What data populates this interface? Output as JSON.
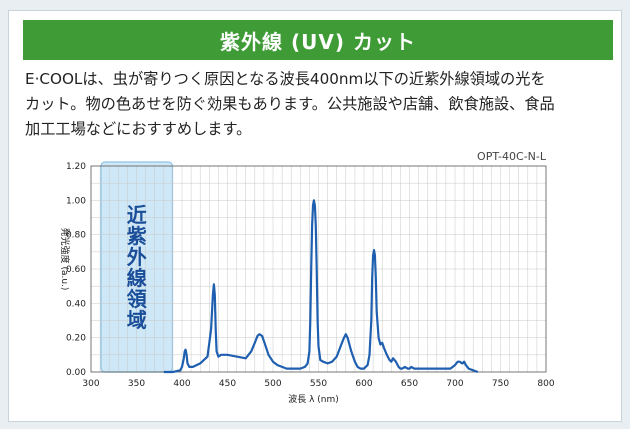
{
  "header": {
    "title": "紫外線 (UV) カット"
  },
  "description": {
    "lines": [
      "E·COOLは、虫が寄りつく原因となる波長400nm以下の近紫外線領域の光を",
      "カット。物の色あせを防ぐ効果もあります。公共施設や店舗、飲食施設、食品",
      "加工工場などにおすすめします。"
    ]
  },
  "colors": {
    "accent": "#3f9b35",
    "line": "#1f5fb0",
    "band_fill": "#cfe8f7",
    "band_border": "#8fc3e6"
  },
  "chart_data": {
    "type": "line",
    "model_label": "OPT-40C-N-L",
    "xlabel": "波長 λ (nm)",
    "ylabel": "発光強度 (a.u.)",
    "xlim": [
      300,
      800
    ],
    "ylim": [
      0,
      1.2
    ],
    "x_ticks": [
      "300",
      "350",
      "400",
      "450",
      "500",
      "550",
      "600",
      "650",
      "700",
      "750",
      "800"
    ],
    "y_ticks": [
      "0.00",
      "0.20",
      "0.40",
      "0.60",
      "0.80",
      "1.00",
      "1.20"
    ],
    "grid": true,
    "band": {
      "label": "近紫外線領域",
      "x_range": [
        300,
        395
      ]
    },
    "series": [
      {
        "x": [
          380,
          390,
          398,
          400,
          402,
          403,
          404,
          405,
          406,
          408,
          412,
          420,
          428,
          432,
          434,
          435,
          436,
          437,
          438,
          440,
          443,
          450,
          460,
          470,
          476,
          480,
          483,
          485,
          488,
          490,
          492,
          495,
          500,
          505,
          510,
          515,
          520,
          525,
          530,
          535,
          538,
          540,
          541,
          542,
          543,
          544,
          545,
          546,
          547,
          548,
          549,
          550,
          552,
          555,
          560,
          565,
          570,
          575,
          578,
          580,
          582,
          584,
          586,
          588,
          590,
          593,
          596,
          600,
          604,
          606,
          608,
          609,
          610,
          611,
          612,
          613,
          614,
          616,
          618,
          620,
          622,
          625,
          628,
          630,
          632,
          635,
          638,
          640,
          642,
          645,
          648,
          650,
          652,
          655,
          660,
          665,
          670,
          675,
          680,
          685,
          690,
          695,
          700,
          703,
          705,
          708,
          710,
          712,
          715,
          720,
          725
        ],
        "y": [
          0.0,
          0.0,
          0.01,
          0.03,
          0.08,
          0.12,
          0.13,
          0.1,
          0.05,
          0.03,
          0.03,
          0.05,
          0.09,
          0.25,
          0.45,
          0.51,
          0.45,
          0.25,
          0.12,
          0.09,
          0.1,
          0.1,
          0.09,
          0.08,
          0.12,
          0.17,
          0.21,
          0.22,
          0.21,
          0.18,
          0.15,
          0.1,
          0.06,
          0.04,
          0.03,
          0.02,
          0.02,
          0.02,
          0.02,
          0.03,
          0.05,
          0.12,
          0.3,
          0.6,
          0.85,
          0.97,
          1.0,
          0.97,
          0.85,
          0.6,
          0.3,
          0.15,
          0.07,
          0.06,
          0.05,
          0.06,
          0.09,
          0.16,
          0.2,
          0.22,
          0.2,
          0.16,
          0.12,
          0.09,
          0.06,
          0.03,
          0.02,
          0.02,
          0.04,
          0.1,
          0.3,
          0.55,
          0.68,
          0.71,
          0.68,
          0.55,
          0.35,
          0.2,
          0.16,
          0.17,
          0.14,
          0.1,
          0.07,
          0.06,
          0.08,
          0.06,
          0.03,
          0.02,
          0.02,
          0.03,
          0.02,
          0.02,
          0.03,
          0.02,
          0.02,
          0.02,
          0.02,
          0.02,
          0.02,
          0.02,
          0.02,
          0.02,
          0.04,
          0.06,
          0.06,
          0.05,
          0.06,
          0.04,
          0.02,
          0.01,
          0.0
        ]
      }
    ]
  }
}
